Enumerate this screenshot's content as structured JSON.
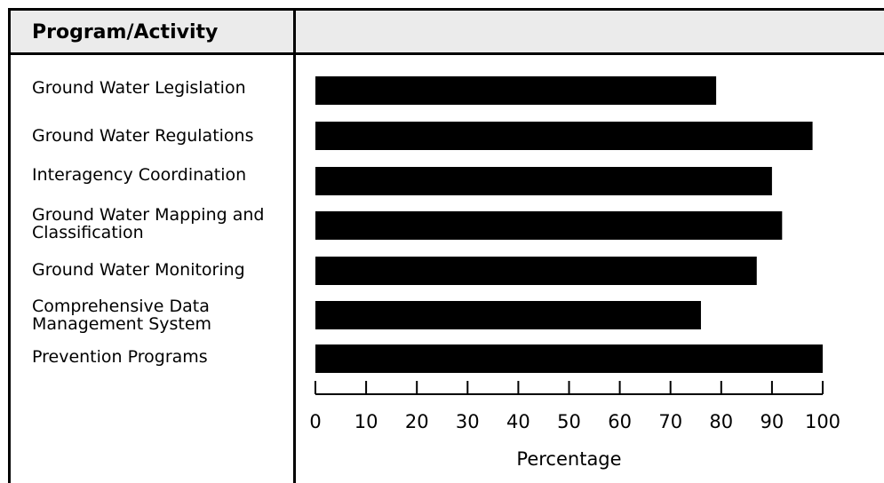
{
  "table": {
    "header": "Program/Activity"
  },
  "chart_data": {
    "type": "bar",
    "orientation": "horizontal",
    "categories": [
      "Ground Water Legislation",
      "Ground Water Regulations",
      "Interagency Coordination",
      "Ground Water Mapping and Classification",
      "Ground Water Monitoring",
      "Comprehensive Data Management System",
      "Prevention Programs"
    ],
    "category_lines": [
      [
        "Ground Water Legislation"
      ],
      [
        "Ground Water Regulations"
      ],
      [
        "Interagency Coordination"
      ],
      [
        "Ground Water Mapping and",
        "Classification"
      ],
      [
        "Ground Water Monitoring"
      ],
      [
        "Comprehensive Data",
        "Management System"
      ],
      [
        "Prevention Programs"
      ]
    ],
    "values": [
      79,
      98,
      90,
      92,
      87,
      76,
      100
    ],
    "xlabel": "Percentage",
    "xlim": [
      0,
      100
    ],
    "xticks": [
      "0",
      "10",
      "20",
      "30",
      "40",
      "50",
      "60",
      "70",
      "80",
      "90",
      "100"
    ],
    "bar_color": "#000000",
    "grid": false,
    "legend": "none"
  }
}
